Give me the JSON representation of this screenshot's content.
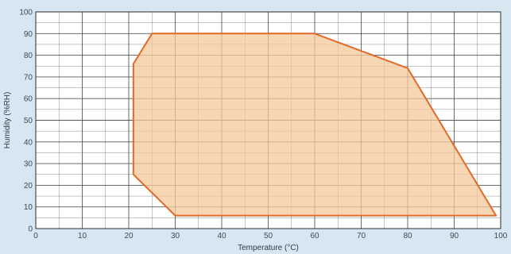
{
  "chart_data": {
    "type": "area",
    "title": "",
    "xlabel": "Temperature (°C)",
    "ylabel": "Humidity (%RH)",
    "xlim": [
      0,
      100
    ],
    "ylim": [
      0,
      100
    ],
    "x_ticks": [
      0,
      10,
      20,
      30,
      40,
      50,
      60,
      70,
      80,
      90,
      100
    ],
    "y_ticks": [
      0,
      10,
      20,
      30,
      40,
      50,
      60,
      70,
      80,
      90,
      100
    ],
    "grid": true,
    "grid_minor_step_x": 5,
    "grid_minor_step_y": 5,
    "series": [
      {
        "points": [
          {
            "x": 21,
            "y": 25
          },
          {
            "x": 21,
            "y": 76
          },
          {
            "x": 25,
            "y": 90
          },
          {
            "x": 60,
            "y": 90
          },
          {
            "x": 80,
            "y": 74
          },
          {
            "x": 99,
            "y": 6
          },
          {
            "x": 30,
            "y": 6
          }
        ]
      }
    ],
    "colors": {
      "background": "#d6e7f2",
      "plot_background": "#ffffff",
      "grid": "#3c3c3c",
      "region_fill": "#f4c99a",
      "region_stroke": "#e06a2a"
    }
  }
}
